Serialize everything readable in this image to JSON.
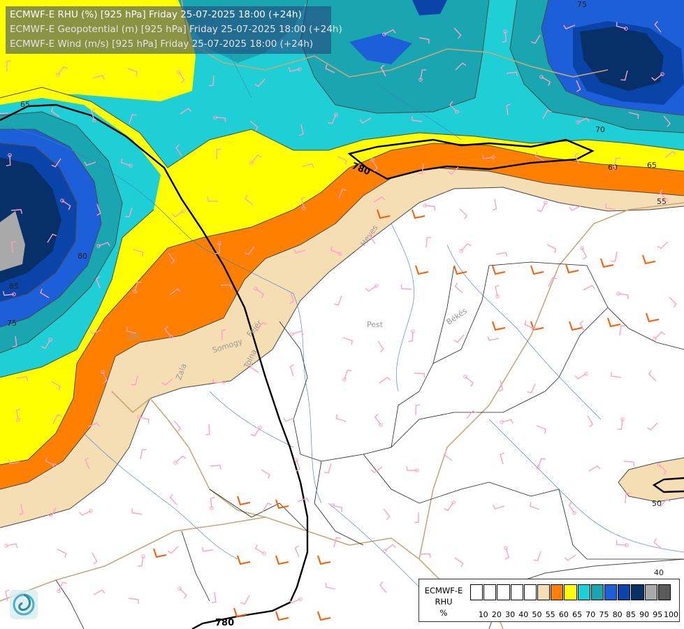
{
  "header": {
    "line1": "ECMWF-E RHU (%) [925 hPa] Friday 25-07-2025 18:00 (+24h)",
    "line2": "ECMWF-E Geopotential (m) [925 hPa] Friday 25-07-2025 18:00 (+24h)",
    "line3": "ECMWF-E Wind (m/s) [925 hPa] Friday 25-07-2025 18:00 (+24h)"
  },
  "legend": {
    "title_lines": [
      "ECMWF-E",
      "RHU",
      "%"
    ],
    "bins": [
      {
        "color": "#ffffff"
      },
      {
        "color": "#ffffff"
      },
      {
        "color": "#ffffff"
      },
      {
        "color": "#ffffff"
      },
      {
        "color": "#ffffff"
      },
      {
        "color": "#f5deb3"
      },
      {
        "color": "#ff8000"
      },
      {
        "color": "#ffff00"
      },
      {
        "color": "#1ecfd6"
      },
      {
        "color": "#1aa6b0"
      },
      {
        "color": "#1c5fd8"
      },
      {
        "color": "#0a44a8"
      },
      {
        "color": "#073068"
      },
      {
        "color": "#a9a9a9"
      },
      {
        "color": "#5a5a5a"
      }
    ],
    "ticks": [
      "10",
      "20",
      "30",
      "40",
      "50",
      "55",
      "60",
      "65",
      "70",
      "75",
      "80",
      "85",
      "90",
      "95",
      "100"
    ]
  },
  "contour_labels": [
    "65",
    "70",
    "60",
    "65",
    "55",
    "75",
    "80",
    "85",
    "75",
    "50",
    "40"
  ],
  "geopotential_labels": [
    "780",
    "780"
  ],
  "region_labels": [
    "Heves",
    "Pest",
    "Békés",
    "Vas",
    "Somogy",
    "Fejér",
    "Zala",
    "Tolna"
  ],
  "colors": {
    "rhu_50_55": "#f5deb3",
    "rhu_55_60": "#ff8000",
    "rhu_60_65": "#ffff00",
    "rhu_65_70": "#1ecfd6",
    "rhu_70_75": "#1aa6b0",
    "rhu_75_80": "#1c5fd8",
    "rhu_80_85": "#0a44a8",
    "rhu_85_90": "#073068",
    "rhu_90_95": "#a9a9a9",
    "wind_barb_orange": "#ff5a00",
    "wind_barb_pink": "#ffa0c8",
    "geopotential_line": "#000000"
  },
  "icons": {
    "logo": "ecmwf-swirl-logo"
  }
}
